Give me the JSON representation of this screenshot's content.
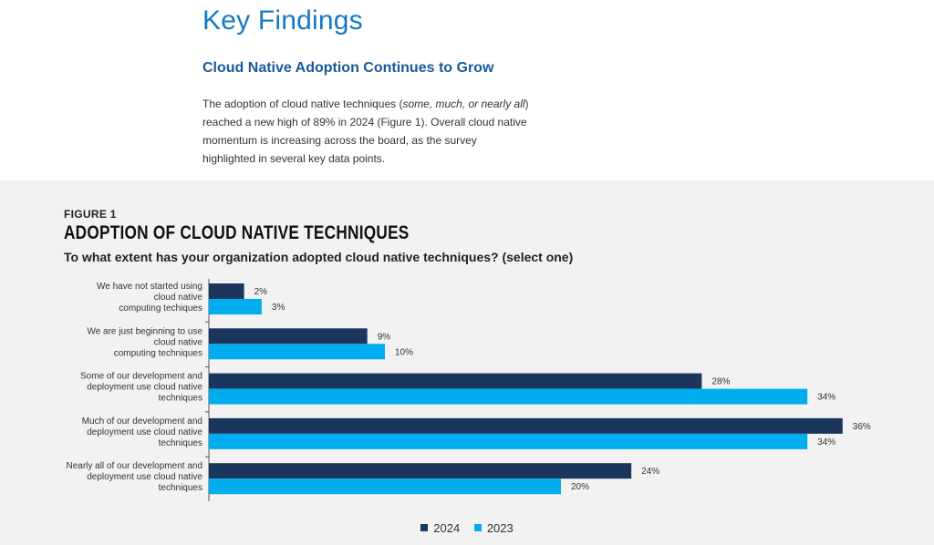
{
  "page": {
    "heading": "Key Findings",
    "subheading": "Cloud Native Adoption Continues to Grow",
    "intro": {
      "p1": "The adoption of cloud native techniques (",
      "p_em": "some, much, or nearly all",
      "p2": ") reached a new high of 89% in 2024 (Figure 1). Overall cloud native momentum is increasing across the board, as the survey highlighted in several key data points."
    }
  },
  "figure": {
    "label": "FIGURE 1",
    "title": "ADOPTION OF CLOUD NATIVE TECHNIQUES",
    "question": "To what extent has your organization adopted cloud native techniques? (select one)"
  },
  "colors": {
    "y2024": "#1b365d",
    "y2023": "#00aeef"
  },
  "chart_data": {
    "type": "bar",
    "orientation": "horizontal",
    "title": "ADOPTION OF CLOUD NATIVE TECHNIQUES",
    "categories": [
      [
        "We have not started using",
        "cloud native",
        "computing techiques"
      ],
      [
        "We are just beginning to use",
        "cloud native",
        "computing techniques"
      ],
      [
        "Some of our development and",
        "deployment use cloud native",
        "techniques"
      ],
      [
        "Much of our development and",
        "deployment use cloud native",
        "techniques"
      ],
      [
        "Nearly all of our development and",
        "deployment use cloud native",
        "techniques"
      ]
    ],
    "series": [
      {
        "name": "2024",
        "values": [
          2,
          9,
          28,
          36,
          24
        ],
        "labels": [
          "2%",
          "9%",
          "28%",
          "36%",
          "24%"
        ]
      },
      {
        "name": "2023",
        "values": [
          3,
          10,
          34,
          34,
          20
        ],
        "labels": [
          "3%",
          "10%",
          "34%",
          "34%",
          "20%"
        ]
      }
    ],
    "xlim": [
      0,
      36
    ],
    "grid": false,
    "legend": "bottom-center"
  }
}
